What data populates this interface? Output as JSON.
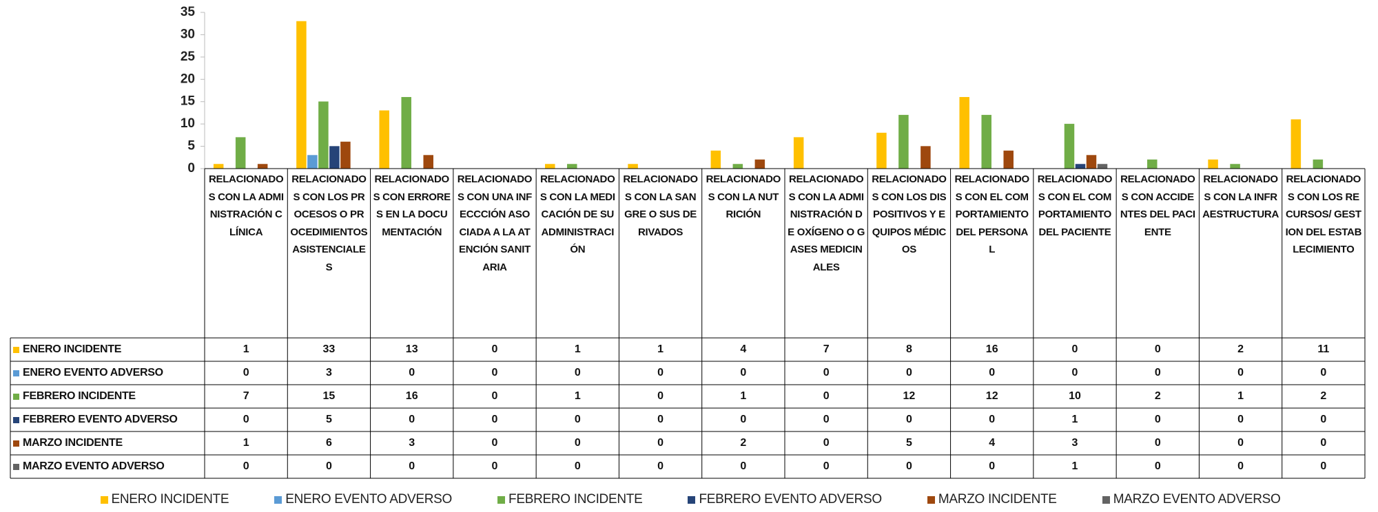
{
  "chart_data": {
    "type": "bar",
    "grid": false,
    "categories": [
      "RELACIONADOS CON LA ADMINISTRACIÓN CLÍNICA",
      "RELACIONADOS CON LOS PROCESOS O PROCEDIMIENTOS ASISTENCIALES",
      "RELACIONADOS CON ERRORES EN LA DOCUMENTACIÓN",
      "RELACIONADOS CON UNA INFECCCIÓN ASOCIADA A LA ATENCIÓN SANITARIA",
      "RELACIONADOS CON LA MEDICACIÓN DE SU ADMINISTRACIÓN",
      "RELACIONADOS CON LA SANGRE O SUS DERIVADOS",
      "RELACIONADOS CON LA NUTRICIÓN",
      "RELACIONADOS CON LA ADMINISTRACIÓN DE OXÍGENO O GASES MEDICINALES",
      "RELACIONADOS CON LOS DISPOSITIVOS Y EQUIPOS MÉDICOS",
      "RELACIONADOS CON EL COMPORTAMIENTO DEL PERSONAL",
      "RELACIONADOS CON EL COMPORTAMIENTO DEL PACIENTE",
      "RELACIONADOS CON ACCIDENTES DEL PACIENTE",
      "RELACIONADOS CON LA INFRAESTRUCTURA",
      "RELACIONADOS CON LOS RECURSOS/ GESTION DEL ESTABLECIMIENTO"
    ],
    "series": [
      {
        "name": "ENERO INCIDENTE",
        "color": "#ffc000",
        "values": [
          1,
          33,
          13,
          0,
          1,
          1,
          4,
          7,
          8,
          16,
          0,
          0,
          2,
          11
        ]
      },
      {
        "name": "ENERO EVENTO ADVERSO",
        "color": "#5b9bd5",
        "values": [
          0,
          3,
          0,
          0,
          0,
          0,
          0,
          0,
          0,
          0,
          0,
          0,
          0,
          0
        ]
      },
      {
        "name": "FEBRERO INCIDENTE",
        "color": "#70ad47",
        "values": [
          7,
          15,
          16,
          0,
          1,
          0,
          1,
          0,
          12,
          12,
          10,
          2,
          1,
          2
        ]
      },
      {
        "name": "FEBRERO EVENTO ADVERSO",
        "color": "#264478",
        "values": [
          0,
          5,
          0,
          0,
          0,
          0,
          0,
          0,
          0,
          0,
          1,
          0,
          0,
          0
        ]
      },
      {
        "name": "MARZO INCIDENTE",
        "color": "#9e480e",
        "values": [
          1,
          6,
          3,
          0,
          0,
          0,
          2,
          0,
          5,
          4,
          3,
          0,
          0,
          0
        ]
      },
      {
        "name": "MARZO EVENTO ADVERSO",
        "color": "#636363",
        "values": [
          0,
          0,
          0,
          0,
          0,
          0,
          0,
          0,
          0,
          0,
          1,
          0,
          0,
          0
        ]
      }
    ],
    "ylim": [
      0,
      35
    ],
    "yticks": [
      0,
      5,
      10,
      15,
      20,
      25,
      30,
      35
    ]
  }
}
